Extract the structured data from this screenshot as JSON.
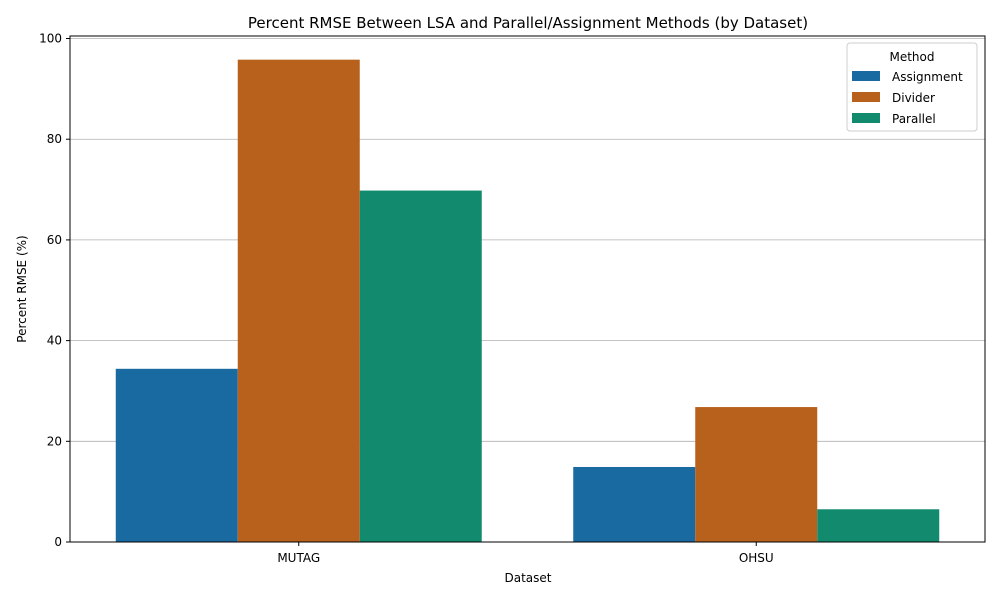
{
  "chart_data": {
    "type": "bar",
    "title": "Percent RMSE Between LSA and Parallel/Assignment Methods (by Dataset)",
    "xlabel": "Dataset",
    "ylabel": "Percent RMSE (%)",
    "categories": [
      "MUTAG",
      "OHSU"
    ],
    "series": [
      {
        "name": "Assignment",
        "values": [
          34.4,
          14.9
        ],
        "color": "#1a6aa2"
      },
      {
        "name": "Divider",
        "values": [
          95.8,
          26.8
        ],
        "color": "#b8611c"
      },
      {
        "name": "Parallel",
        "values": [
          69.8,
          6.5
        ],
        "color": "#128a6e"
      }
    ],
    "ylim": [
      0,
      100.5
    ],
    "yticks": [
      0,
      20,
      40,
      60,
      80,
      100
    ],
    "grid": "y",
    "legend": {
      "title": "Method",
      "position": "top-right"
    }
  }
}
